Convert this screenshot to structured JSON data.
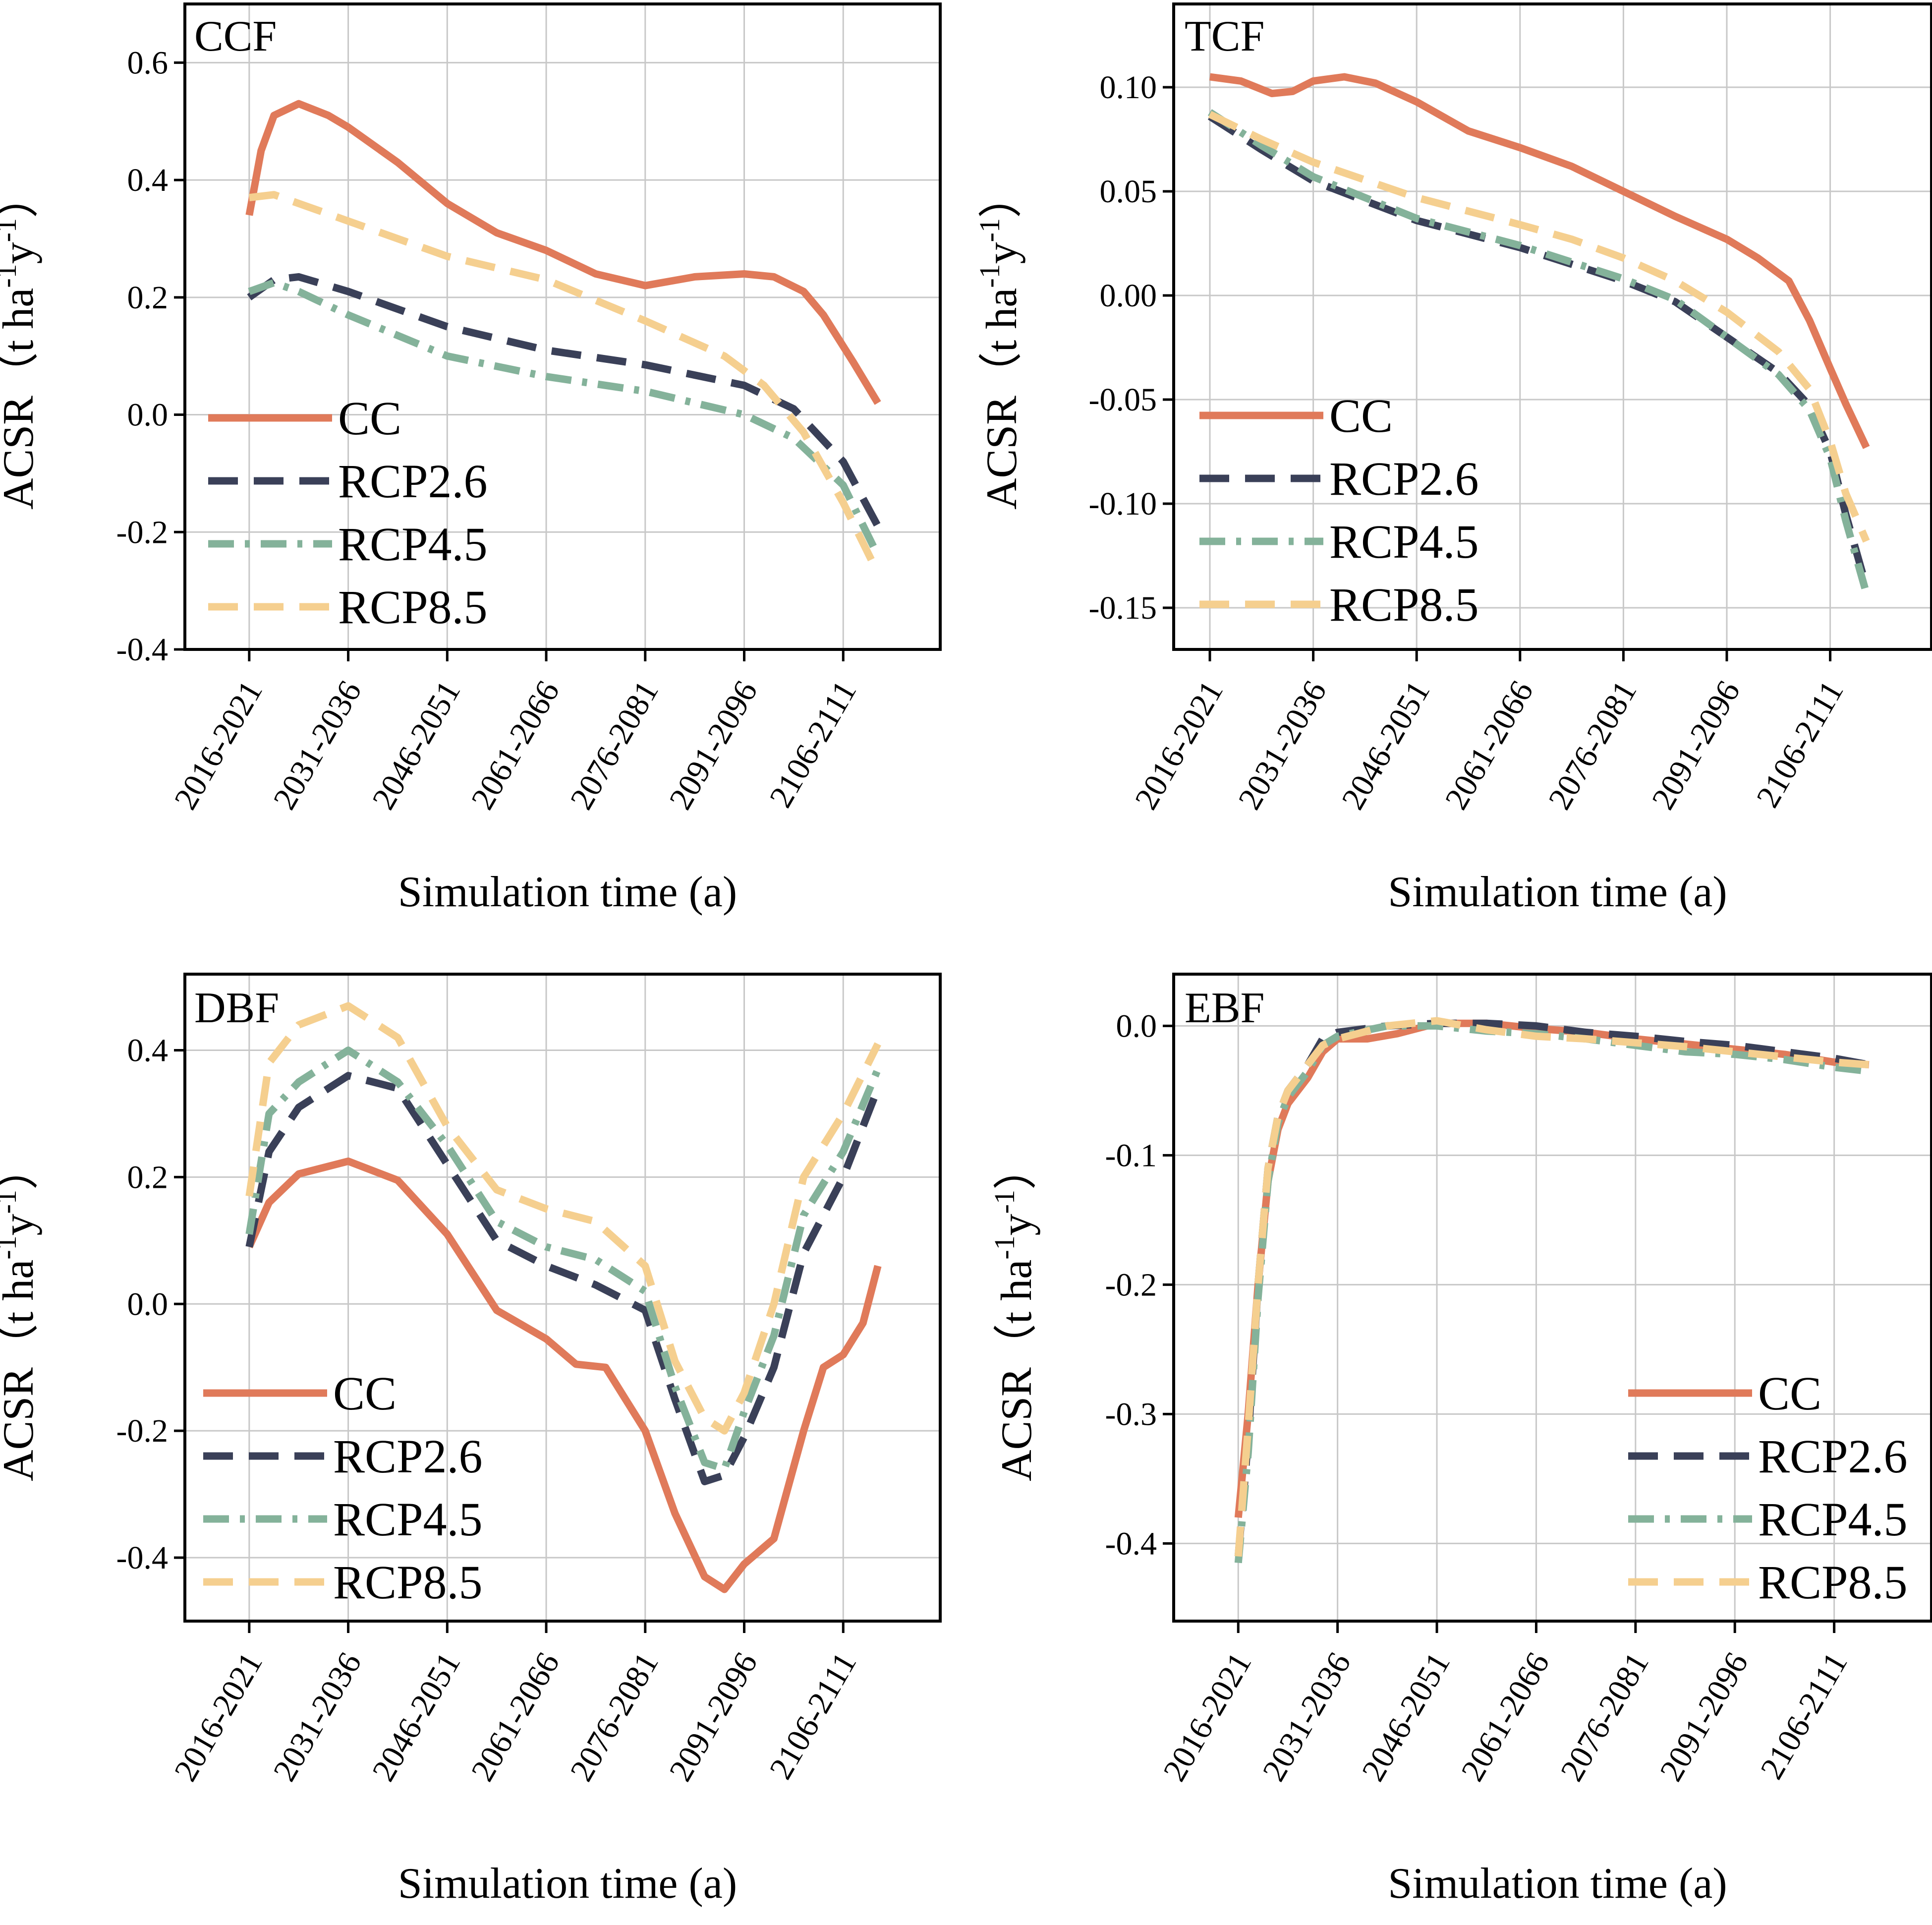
{
  "colors": {
    "CC": "#e07a5a",
    "RCP2.6": "#3a4058",
    "RCP4.5": "#84b29a",
    "RCP8.5": "#f5cf8f"
  },
  "legend": [
    "CC",
    "RCP2.6",
    "RCP4.5",
    "RCP8.5"
  ],
  "chart_data": [
    {
      "type": "line",
      "title": "CCF",
      "xlabel": "Simulation time (a)",
      "ylabel_main": "ACSR（t ha",
      "ylabel_sup1": "-1",
      "ylabel_mid": "y",
      "ylabel_sup2": "-1",
      "ylabel_end": "）",
      "categories": [
        "2016-2021",
        "2031-2036",
        "2046-2051",
        "2061-2066",
        "2076-2081",
        "2091-2096",
        "2106-2111"
      ],
      "xlim": [
        -0.65,
        6.98
      ],
      "ylim": [
        -0.4,
        0.7
      ],
      "yticks": [
        -0.4,
        -0.2,
        0.0,
        0.2,
        0.4,
        0.6
      ],
      "ytick_labels": [
        "-0.4",
        "-0.2",
        "0.0",
        "0.2",
        "0.4",
        "0.6"
      ],
      "legend_position": "lower-left",
      "series": [
        {
          "name": "CC",
          "x": [
            0,
            0.12,
            0.25,
            0.5,
            0.8,
            1.0,
            1.5,
            2.0,
            2.5,
            3.0,
            3.5,
            4.0,
            4.5,
            5.0,
            5.3,
            5.6,
            5.8,
            6.1,
            6.35
          ],
          "y": [
            0.34,
            0.45,
            0.51,
            0.53,
            0.51,
            0.49,
            0.43,
            0.36,
            0.31,
            0.28,
            0.24,
            0.22,
            0.235,
            0.24,
            0.235,
            0.21,
            0.17,
            0.09,
            0.02
          ]
        },
        {
          "name": "RCP2.6",
          "x": [
            0,
            0.25,
            0.5,
            1.0,
            2.0,
            3.0,
            4.0,
            5.0,
            5.5,
            6.0,
            6.35
          ],
          "y": [
            0.2,
            0.23,
            0.235,
            0.21,
            0.15,
            0.11,
            0.085,
            0.05,
            0.01,
            -0.08,
            -0.19
          ]
        },
        {
          "name": "RCP4.5",
          "x": [
            0,
            0.25,
            0.5,
            1.0,
            2.0,
            3.0,
            4.0,
            5.0,
            5.5,
            6.0,
            6.35
          ],
          "y": [
            0.21,
            0.225,
            0.21,
            0.17,
            0.1,
            0.065,
            0.04,
            0.0,
            -0.04,
            -0.12,
            -0.24
          ]
        },
        {
          "name": "RCP8.5",
          "x": [
            0,
            0.25,
            0.5,
            1.0,
            2.0,
            3.0,
            4.0,
            4.8,
            5.2,
            5.6,
            6.0,
            6.35
          ],
          "y": [
            0.37,
            0.375,
            0.36,
            0.33,
            0.27,
            0.23,
            0.16,
            0.1,
            0.05,
            -0.03,
            -0.15,
            -0.27
          ]
        }
      ]
    },
    {
      "type": "line",
      "title": "TCF",
      "xlabel": "Simulation time (a)",
      "ylabel_main": "ACSR（t ha",
      "ylabel_sup1": "-1",
      "ylabel_mid": "y",
      "ylabel_sup2": "-1",
      "ylabel_end": "）",
      "categories": [
        "2016-2021",
        "2031-2036",
        "2046-2051",
        "2061-2066",
        "2076-2081",
        "2091-2096",
        "2106-2111"
      ],
      "xlim": [
        -0.35,
        6.98
      ],
      "ylim": [
        -0.17,
        0.14
      ],
      "yticks": [
        -0.15,
        -0.1,
        -0.05,
        0.0,
        0.05,
        0.1
      ],
      "ytick_labels": [
        "-0.15",
        "-0.10",
        "-0.05",
        "0.00",
        "0.05",
        "0.10"
      ],
      "legend_position": "lower-left",
      "series": [
        {
          "name": "CC",
          "x": [
            0,
            0.3,
            0.6,
            0.8,
            1.0,
            1.3,
            1.6,
            2.0,
            2.5,
            3.0,
            3.5,
            4.0,
            4.5,
            5.0,
            5.3,
            5.6,
            5.8,
            6.0,
            6.15,
            6.35
          ],
          "y": [
            0.105,
            0.103,
            0.097,
            0.098,
            0.103,
            0.105,
            0.102,
            0.093,
            0.079,
            0.071,
            0.062,
            0.05,
            0.038,
            0.027,
            0.018,
            0.007,
            -0.012,
            -0.035,
            -0.052,
            -0.073
          ]
        },
        {
          "name": "RCP2.6",
          "x": [
            0,
            0.5,
            1.0,
            2.0,
            3.0,
            3.5,
            4.0,
            4.5,
            5.0,
            5.5,
            5.8,
            6.0,
            6.15,
            6.35
          ],
          "y": [
            0.086,
            0.07,
            0.055,
            0.036,
            0.023,
            0.015,
            0.007,
            -0.003,
            -0.02,
            -0.037,
            -0.053,
            -0.075,
            -0.105,
            -0.14
          ]
        },
        {
          "name": "RCP4.5",
          "x": [
            0,
            0.5,
            1.0,
            2.0,
            3.0,
            3.5,
            4.0,
            4.5,
            5.0,
            5.5,
            5.8,
            6.0,
            6.15,
            6.35
          ],
          "y": [
            0.088,
            0.072,
            0.057,
            0.037,
            0.024,
            0.016,
            0.008,
            -0.002,
            -0.02,
            -0.038,
            -0.055,
            -0.078,
            -0.108,
            -0.143
          ]
        },
        {
          "name": "RCP8.5",
          "x": [
            0,
            0.5,
            1.0,
            2.0,
            3.0,
            3.5,
            4.0,
            4.5,
            5.0,
            5.5,
            5.8,
            6.0,
            6.15,
            6.35
          ],
          "y": [
            0.087,
            0.075,
            0.064,
            0.047,
            0.034,
            0.027,
            0.018,
            0.007,
            -0.008,
            -0.027,
            -0.045,
            -0.07,
            -0.095,
            -0.118
          ]
        }
      ]
    },
    {
      "type": "line",
      "title": "DBF",
      "xlabel": "Simulation time (a)",
      "ylabel_main": "ACSR（t ha",
      "ylabel_sup1": "-1",
      "ylabel_mid": "y",
      "ylabel_sup2": "-1",
      "ylabel_end": "）",
      "categories": [
        "2016-2021",
        "2031-2036",
        "2046-2051",
        "2061-2066",
        "2076-2081",
        "2091-2096",
        "2106-2111"
      ],
      "xlim": [
        -0.65,
        6.98
      ],
      "ylim": [
        -0.5,
        0.52
      ],
      "yticks": [
        -0.4,
        -0.2,
        0.0,
        0.2,
        0.4
      ],
      "ytick_labels": [
        "-0.4",
        "-0.2",
        "0.0",
        "0.2",
        "0.4"
      ],
      "legend_position": "lower-left",
      "series": [
        {
          "name": "CC",
          "x": [
            0,
            0.2,
            0.5,
            1.0,
            1.5,
            2.0,
            2.5,
            3.0,
            3.3,
            3.6,
            4.0,
            4.3,
            4.6,
            4.8,
            5.0,
            5.3,
            5.6,
            5.8,
            6.0,
            6.2,
            6.35
          ],
          "y": [
            0.09,
            0.16,
            0.205,
            0.225,
            0.195,
            0.11,
            -0.01,
            -0.055,
            -0.095,
            -0.1,
            -0.2,
            -0.33,
            -0.43,
            -0.45,
            -0.41,
            -0.37,
            -0.2,
            -0.1,
            -0.08,
            -0.03,
            0.06
          ]
        },
        {
          "name": "RCP2.6",
          "x": [
            0,
            0.2,
            0.5,
            1.0,
            1.5,
            2.0,
            2.5,
            3.0,
            3.5,
            4.0,
            4.3,
            4.6,
            4.8,
            5.0,
            5.3,
            5.6,
            6.0,
            6.35
          ],
          "y": [
            0.09,
            0.24,
            0.31,
            0.36,
            0.34,
            0.22,
            0.1,
            0.06,
            0.03,
            -0.01,
            -0.15,
            -0.28,
            -0.27,
            -0.21,
            -0.1,
            0.08,
            0.2,
            0.34
          ]
        },
        {
          "name": "RCP4.5",
          "x": [
            0,
            0.2,
            0.5,
            1.0,
            1.5,
            2.0,
            2.5,
            3.0,
            3.5,
            4.0,
            4.3,
            4.6,
            4.8,
            5.0,
            5.3,
            5.6,
            6.0,
            6.35
          ],
          "y": [
            0.11,
            0.3,
            0.35,
            0.4,
            0.35,
            0.25,
            0.13,
            0.09,
            0.07,
            0.02,
            -0.13,
            -0.25,
            -0.26,
            -0.17,
            -0.05,
            0.14,
            0.24,
            0.37
          ]
        },
        {
          "name": "RCP8.5",
          "x": [
            0,
            0.2,
            0.5,
            1.0,
            1.5,
            2.0,
            2.5,
            3.0,
            3.5,
            4.0,
            4.3,
            4.6,
            4.8,
            5.0,
            5.3,
            5.6,
            6.0,
            6.35
          ],
          "y": [
            0.17,
            0.38,
            0.44,
            0.47,
            0.42,
            0.28,
            0.18,
            0.15,
            0.13,
            0.06,
            -0.09,
            -0.18,
            -0.2,
            -0.14,
            0.0,
            0.2,
            0.3,
            0.41
          ]
        }
      ]
    },
    {
      "type": "line",
      "title": "EBF",
      "xlabel": "Simulation time (a)",
      "ylabel_main": "ACSR（t ha",
      "ylabel_sup1": "-1",
      "ylabel_mid": "y",
      "ylabel_sup2": "-1",
      "ylabel_end": "）",
      "categories": [
        "2016-2021",
        "2031-2036",
        "2046-2051",
        "2061-2066",
        "2076-2081",
        "2091-2096",
        "2106-2111"
      ],
      "xlim": [
        -0.65,
        6.98
      ],
      "ylim": [
        -0.46,
        0.04
      ],
      "yticks": [
        -0.4,
        -0.3,
        -0.2,
        -0.1,
        0.0
      ],
      "ytick_labels": [
        "-0.4",
        "-0.3",
        "-0.2",
        "-0.1",
        "0.0"
      ],
      "legend_position": "lower-right",
      "series": [
        {
          "name": "CC",
          "x": [
            0,
            0.1,
            0.2,
            0.3,
            0.4,
            0.5,
            0.7,
            0.85,
            1.0,
            1.3,
            1.6,
            2.0,
            2.5,
            3.0,
            3.5,
            4.0,
            4.5,
            5.0,
            5.5,
            6.0,
            6.35
          ],
          "y": [
            -0.38,
            -0.3,
            -0.2,
            -0.12,
            -0.08,
            -0.06,
            -0.04,
            -0.02,
            -0.01,
            -0.01,
            -0.006,
            0.002,
            0.002,
            -0.002,
            -0.005,
            -0.01,
            -0.014,
            -0.018,
            -0.022,
            -0.028,
            -0.03
          ]
        },
        {
          "name": "RCP2.6",
          "x": [
            0,
            0.1,
            0.2,
            0.3,
            0.4,
            0.5,
            0.7,
            0.85,
            1.0,
            1.5,
            2.0,
            2.5,
            3.0,
            3.5,
            4.0,
            4.5,
            5.0,
            5.5,
            6.0,
            6.35
          ],
          "y": [
            -0.41,
            -0.32,
            -0.2,
            -0.11,
            -0.07,
            -0.05,
            -0.03,
            -0.01,
            -0.005,
            0.0,
            0.002,
            0.002,
            0.0,
            -0.005,
            -0.008,
            -0.012,
            -0.015,
            -0.02,
            -0.025,
            -0.03
          ]
        },
        {
          "name": "RCP4.5",
          "x": [
            0,
            0.1,
            0.2,
            0.3,
            0.4,
            0.5,
            0.7,
            0.85,
            1.0,
            1.5,
            2.0,
            2.5,
            3.0,
            3.5,
            4.0,
            4.5,
            5.0,
            5.5,
            6.0,
            6.35
          ],
          "y": [
            -0.415,
            -0.33,
            -0.21,
            -0.12,
            -0.075,
            -0.055,
            -0.035,
            -0.015,
            -0.008,
            0.0,
            0.0,
            -0.004,
            -0.006,
            -0.01,
            -0.015,
            -0.02,
            -0.022,
            -0.026,
            -0.032,
            -0.035
          ]
        },
        {
          "name": "RCP8.5",
          "x": [
            0,
            0.1,
            0.2,
            0.3,
            0.4,
            0.5,
            0.7,
            0.85,
            1.0,
            1.5,
            2.0,
            2.5,
            3.0,
            3.5,
            4.0,
            4.5,
            5.0,
            5.5,
            6.0,
            6.35
          ],
          "y": [
            -0.41,
            -0.31,
            -0.2,
            -0.11,
            -0.07,
            -0.05,
            -0.03,
            -0.015,
            -0.01,
            0.0,
            0.004,
            -0.003,
            -0.008,
            -0.01,
            -0.013,
            -0.016,
            -0.02,
            -0.024,
            -0.028,
            -0.03
          ]
        }
      ]
    }
  ]
}
